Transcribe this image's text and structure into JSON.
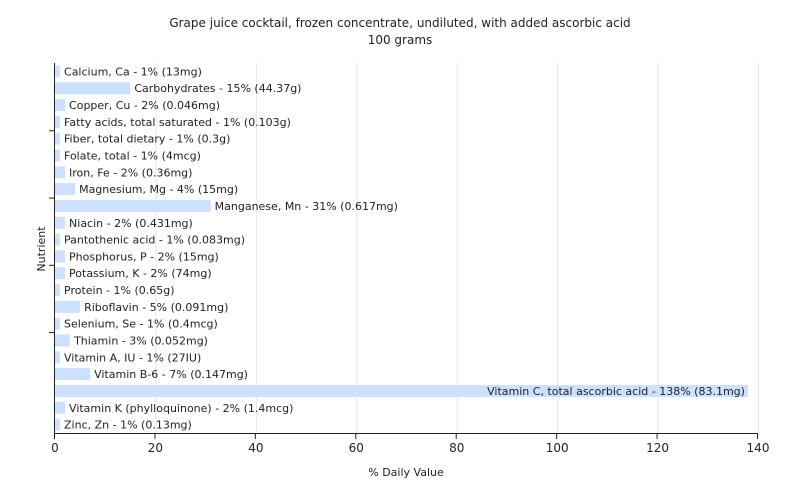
{
  "chart_data": {
    "type": "bar",
    "orientation": "horizontal",
    "title": "Grape juice cocktail, frozen concentrate, undiluted, with added ascorbic acid",
    "subtitle": "100 grams",
    "xlabel": "% Daily Value",
    "ylabel": "Nutrient",
    "xlim": [
      0,
      140
    ],
    "xticks": [
      0,
      20,
      40,
      60,
      80,
      100,
      120,
      140
    ],
    "grid": true,
    "bar_color": "#cce0ff",
    "categories": [
      "Calcium, Ca",
      "Carbohydrates",
      "Copper, Cu",
      "Fatty acids, total saturated",
      "Fiber, total dietary",
      "Folate, total",
      "Iron, Fe",
      "Magnesium, Mg",
      "Manganese, Mn",
      "Niacin",
      "Pantothenic acid",
      "Phosphorus, P",
      "Potassium, K",
      "Protein",
      "Riboflavin",
      "Selenium, Se",
      "Thiamin",
      "Vitamin A, IU",
      "Vitamin B-6",
      "Vitamin C, total ascorbic acid",
      "Vitamin K (phylloquinone)",
      "Zinc, Zn"
    ],
    "values": [
      1,
      15,
      2,
      1,
      1,
      1,
      2,
      4,
      31,
      2,
      1,
      2,
      2,
      1,
      5,
      1,
      3,
      1,
      7,
      138,
      2,
      1
    ],
    "labels": [
      "Calcium, Ca - 1% (13mg)",
      "Carbohydrates - 15% (44.37g)",
      "Copper, Cu - 2% (0.046mg)",
      "Fatty acids, total saturated - 1% (0.103g)",
      "Fiber, total dietary - 1% (0.3g)",
      "Folate, total - 1% (4mcg)",
      "Iron, Fe - 2% (0.36mg)",
      "Magnesium, Mg - 4% (15mg)",
      "Manganese, Mn - 31% (0.617mg)",
      "Niacin - 2% (0.431mg)",
      "Pantothenic acid - 1% (0.083mg)",
      "Phosphorus, P - 2% (15mg)",
      "Potassium, K - 2% (74mg)",
      "Protein - 1% (0.65g)",
      "Riboflavin - 5% (0.091mg)",
      "Selenium, Se - 1% (0.4mcg)",
      "Thiamin - 3% (0.052mg)",
      "Vitamin A, IU - 1% (27IU)",
      "Vitamin B-6 - 7% (0.147mg)",
      "Vitamin C, total ascorbic acid - 138% (83.1mg)",
      "Vitamin K (phylloquinone) - 2% (1.4mcg)",
      "Zinc, Zn - 1% (0.13mg)"
    ]
  }
}
